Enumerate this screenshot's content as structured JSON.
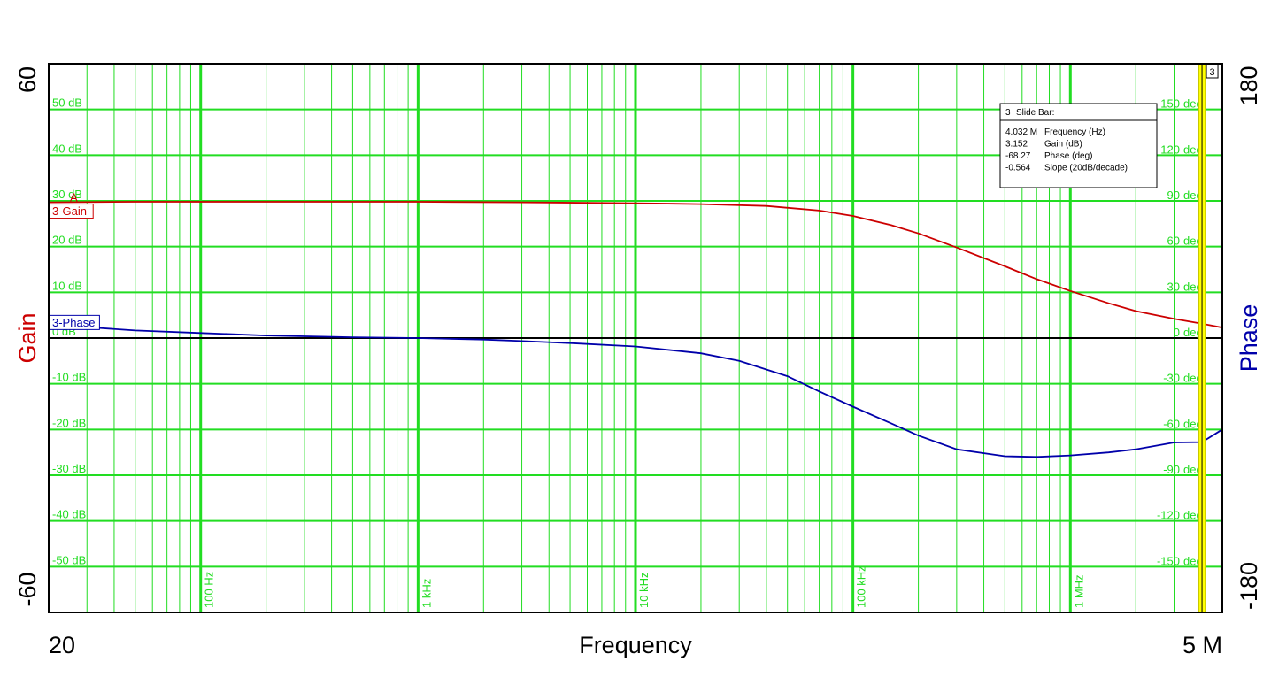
{
  "chart_data": {
    "type": "line",
    "x_scale": "log",
    "xlim": [
      20,
      5000000
    ],
    "ylim_gain": [
      -60,
      60
    ],
    "ylim_phase": [
      -180,
      180
    ],
    "xlabel": "Frequency",
    "ylabel_left": "Gain",
    "ylabel_right": "Phase",
    "x_end_labels": [
      "20",
      "5 M"
    ],
    "y_end_labels_left": [
      "60",
      "-60"
    ],
    "y_end_labels_right": [
      "180",
      "-180"
    ],
    "x_decade_labels": [
      {
        "f": 100,
        "label": "100 Hz"
      },
      {
        "f": 1000,
        "label": "1 kHz"
      },
      {
        "f": 10000,
        "label": "10 kHz"
      },
      {
        "f": 100000,
        "label": "100 kHz"
      },
      {
        "f": 1000000,
        "label": "1 MHz"
      }
    ],
    "gain_tick_labels": [
      {
        "v": 50,
        "label": "50 dB"
      },
      {
        "v": 40,
        "label": "40 dB"
      },
      {
        "v": 30,
        "label": "30 dB"
      },
      {
        "v": 20,
        "label": "20 dB"
      },
      {
        "v": 10,
        "label": "10 dB"
      },
      {
        "v": 0,
        "label": "0 dB"
      },
      {
        "v": -10,
        "label": "-10 dB"
      },
      {
        "v": -20,
        "label": "-20 dB"
      },
      {
        "v": -30,
        "label": "-30 dB"
      },
      {
        "v": -40,
        "label": "-40 dB"
      },
      {
        "v": -50,
        "label": "-50 dB"
      }
    ],
    "phase_tick_labels": [
      {
        "v": 150,
        "label": "150 deg"
      },
      {
        "v": 120,
        "label": "120 deg"
      },
      {
        "v": 90,
        "label": "90 deg"
      },
      {
        "v": 60,
        "label": "60 deg"
      },
      {
        "v": 30,
        "label": "30 deg"
      },
      {
        "v": 0,
        "label": "0 deg"
      },
      {
        "v": -30,
        "label": "-30 deg"
      },
      {
        "v": -60,
        "label": "-60 deg"
      },
      {
        "v": -90,
        "label": "-90 deg"
      },
      {
        "v": -120,
        "label": "-120 deg"
      },
      {
        "v": -150,
        "label": "-150 deg"
      }
    ],
    "grid": true,
    "series": [
      {
        "name": "3-Gain",
        "axis": "gain",
        "color": "#cc0000",
        "x": [
          20,
          50,
          100,
          300,
          1000,
          3000,
          10000,
          20000,
          40000,
          70000,
          100000,
          150000,
          200000,
          300000,
          500000,
          700000,
          1000000,
          1500000,
          2000000,
          3000000,
          4032000,
          5000000
        ],
        "y": [
          29.7,
          29.8,
          29.8,
          29.8,
          29.8,
          29.7,
          29.5,
          29.3,
          28.9,
          27.9,
          26.7,
          24.7,
          22.9,
          19.8,
          15.7,
          12.9,
          10.3,
          7.6,
          5.9,
          4.2,
          3.15,
          2.3
        ]
      },
      {
        "name": "3-Phase",
        "axis": "phase",
        "color": "#0000aa",
        "x": [
          20,
          30,
          50,
          100,
          200,
          500,
          1000,
          2000,
          3000,
          5000,
          10000,
          20000,
          30000,
          50000,
          70000,
          100000,
          150000,
          200000,
          300000,
          500000,
          700000,
          1000000,
          1500000,
          2000000,
          3000000,
          4032000,
          5000000
        ],
        "y": [
          8.5,
          7.2,
          5.0,
          3.3,
          1.7,
          0.5,
          0,
          -1.0,
          -2.0,
          -3.3,
          -5.5,
          -10,
          -15,
          -25,
          -35,
          -45,
          -56,
          -64,
          -73,
          -77.5,
          -78,
          -77,
          -75,
          -73,
          -68.5,
          -68.27,
          -60
        ]
      }
    ],
    "markers": [
      {
        "series": "3-Gain",
        "label": "A"
      }
    ],
    "slide_bar": {
      "number": "3",
      "frequency": 4032000,
      "title": "Slide Bar:",
      "rows": [
        {
          "value": "4.032 M",
          "label": "Frequency (Hz)"
        },
        {
          "value": "3.152",
          "label": "Gain (dB)"
        },
        {
          "value": "-68.27",
          "label": "Phase (deg)"
        },
        {
          "value": "-0.564",
          "label": "Slope (20dB/decade)"
        }
      ]
    },
    "colors": {
      "grid": "#22dd22",
      "zero_line": "#000000",
      "gain": "#cc0000",
      "phase": "#0000aa",
      "slide_bar_fill": "#ffff00",
      "slide_bar_border": "#999900"
    }
  }
}
